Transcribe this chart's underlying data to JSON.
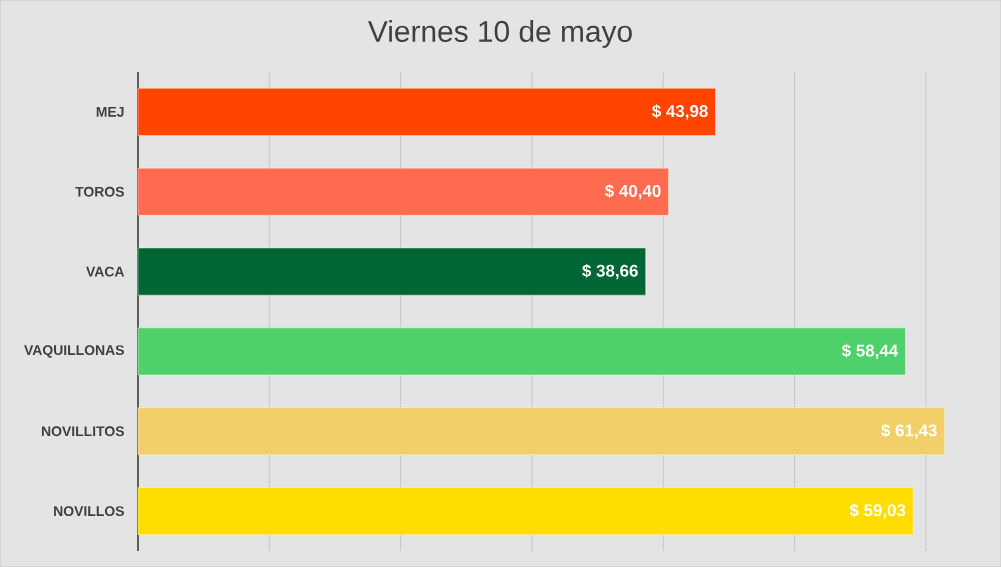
{
  "chart_data": {
    "type": "bar",
    "orientation": "horizontal",
    "title": "Viernes 10 de mayo",
    "categories": [
      "MEJ",
      "TOROS",
      "VACA",
      "VAQUILLONAS",
      "NOVILLITOS",
      "NOVILLOS"
    ],
    "values": [
      43.98,
      40.4,
      38.66,
      58.44,
      61.43,
      59.03
    ],
    "colors": [
      "#ff4500",
      "#ff6b4f",
      "#006633",
      "#4ed16a",
      "#f3cf69",
      "#ffdd00"
    ],
    "value_labels": [
      "$ 43,98",
      "$ 40,40",
      "$ 38,66",
      "$ 58,44",
      "$ 61,43",
      "$ 59,03"
    ],
    "xticks": [
      {
        "value": 0,
        "label": null
      },
      {
        "value": 10,
        "label": null
      },
      {
        "value": 20,
        "label": null
      },
      {
        "value": 30,
        "label": null
      },
      {
        "value": 40,
        "label": null
      },
      {
        "value": 50,
        "label": null
      },
      {
        "value": 60,
        "label": null
      }
    ],
    "grid": "x",
    "tick_labels": "y"
  }
}
